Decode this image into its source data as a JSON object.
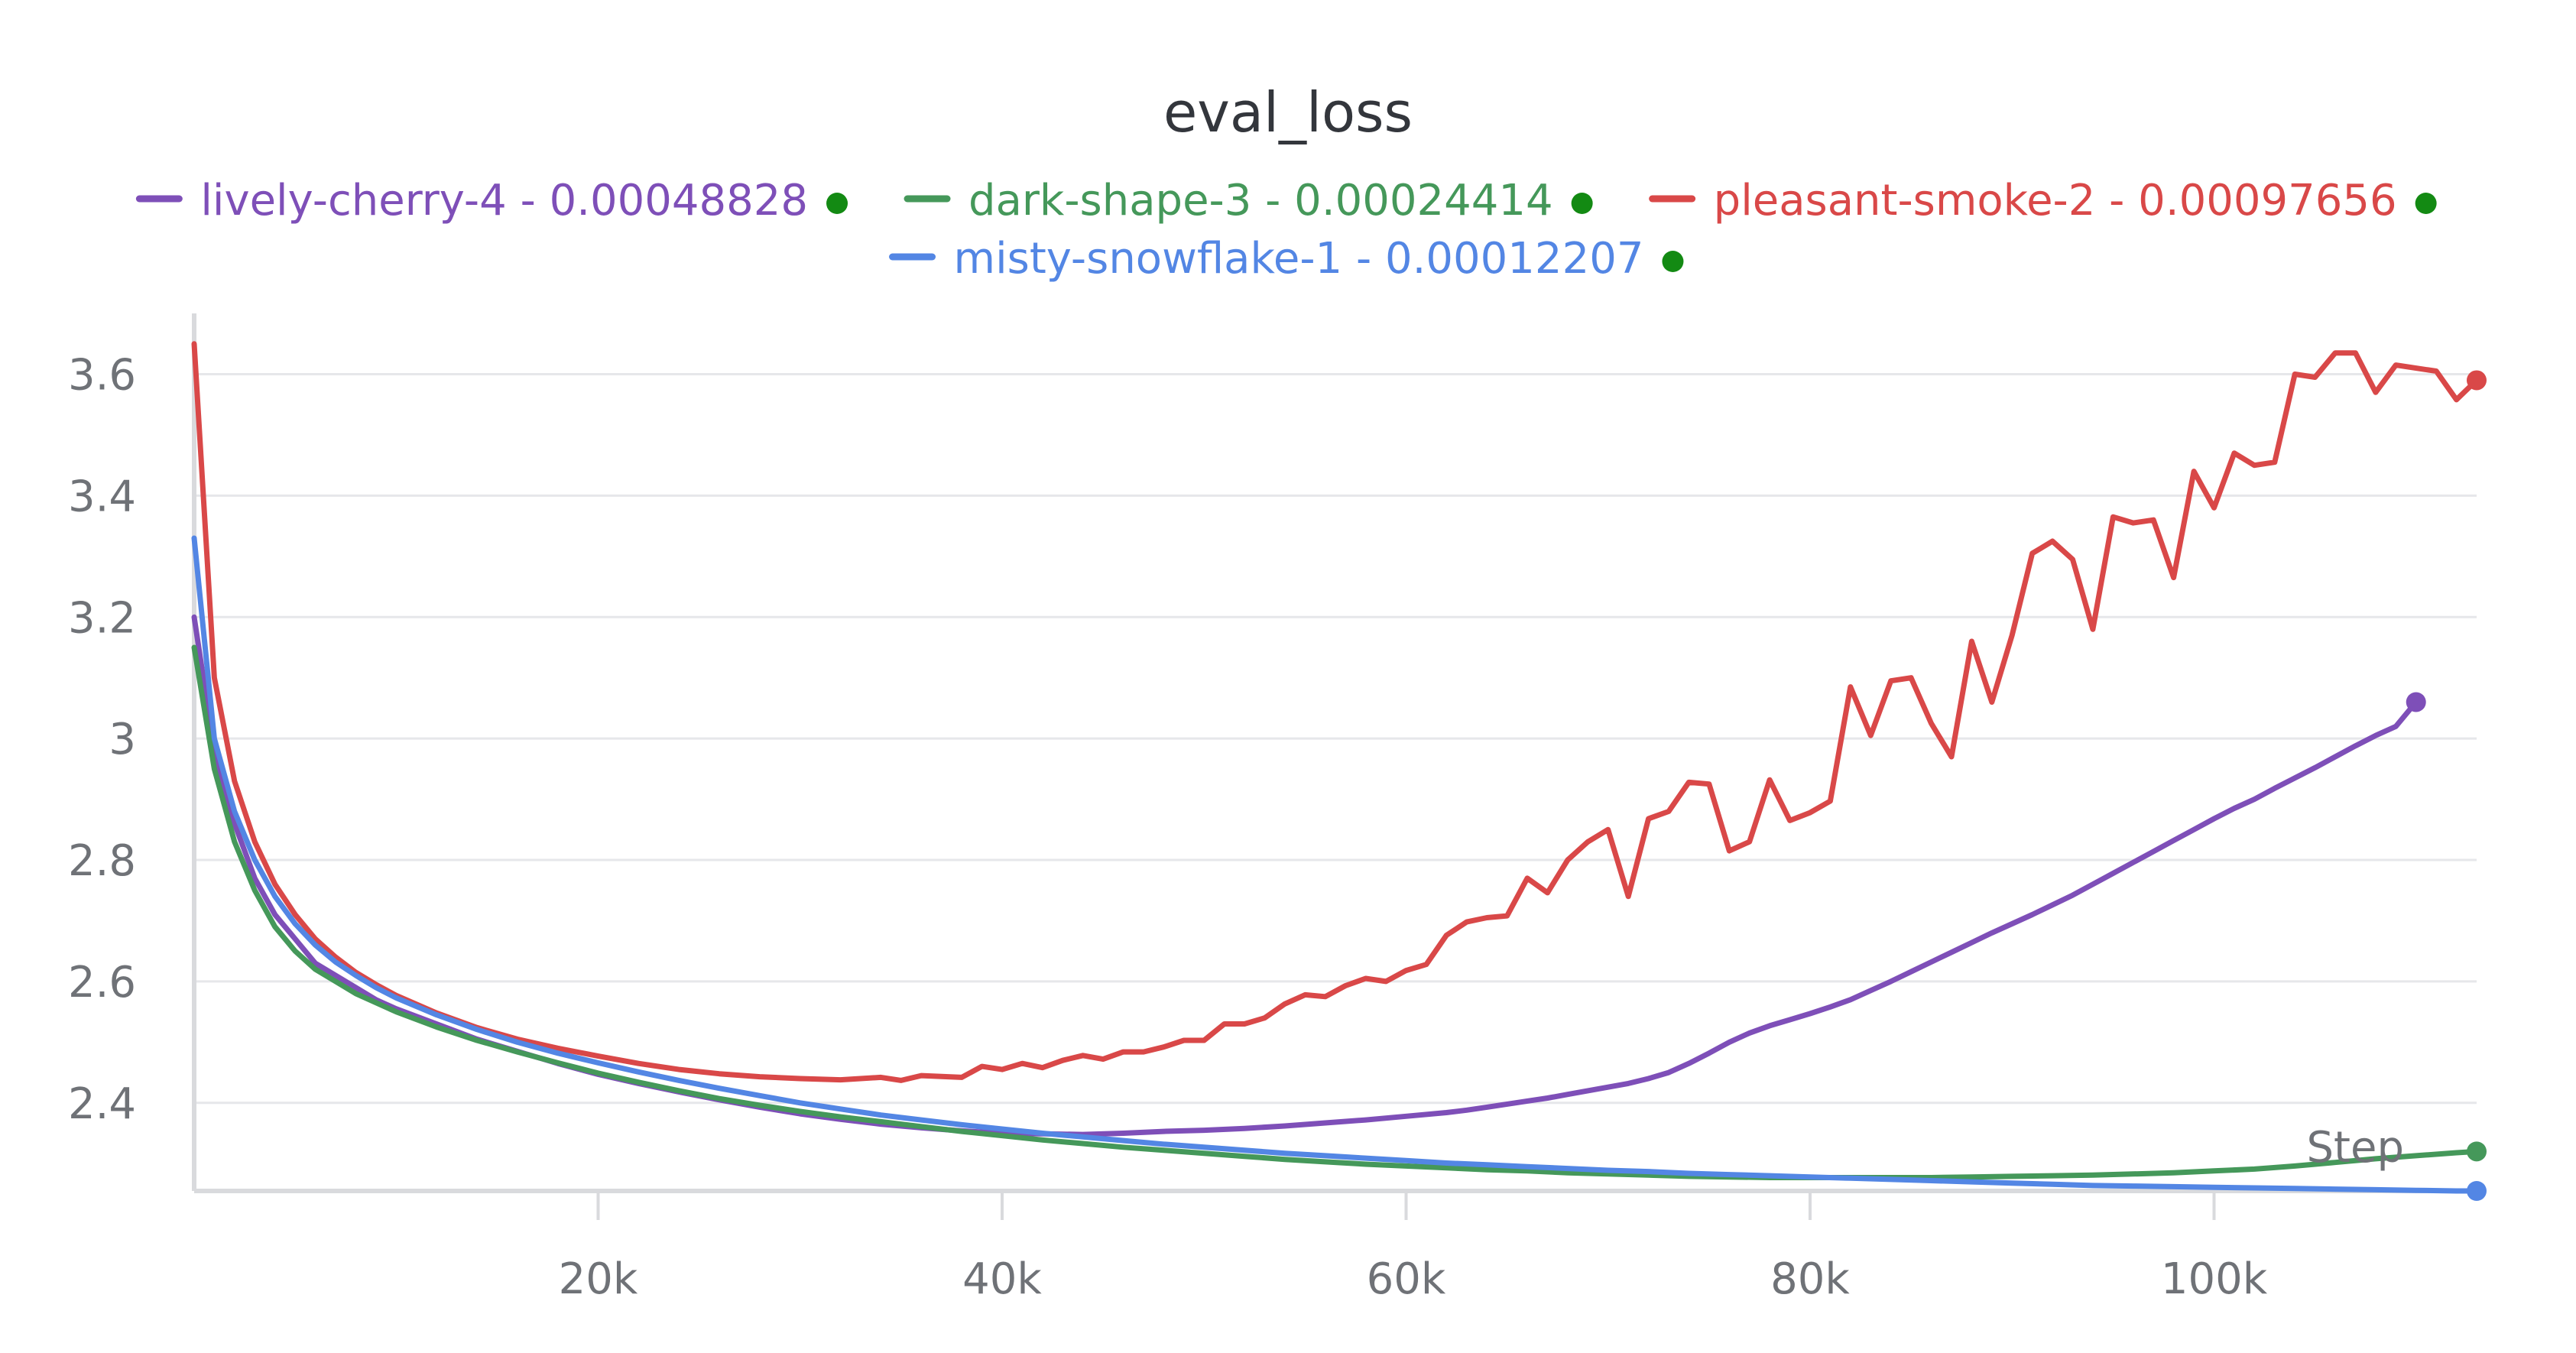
{
  "chart_data": {
    "type": "line",
    "title": "eval_loss",
    "xlabel": "Step",
    "ylabel": "",
    "xlim": [
      0,
      113000
    ],
    "ylim": [
      2.255,
      3.69
    ],
    "x_ticks": [
      {
        "value": 20000,
        "label": "20k"
      },
      {
        "value": 40000,
        "label": "40k"
      },
      {
        "value": 60000,
        "label": "60k"
      },
      {
        "value": 80000,
        "label": "80k"
      },
      {
        "value": 100000,
        "label": "100k"
      }
    ],
    "y_ticks": [
      {
        "value": 2.4,
        "label": "2.4"
      },
      {
        "value": 2.6,
        "label": "2.6"
      },
      {
        "value": 2.8,
        "label": "2.8"
      },
      {
        "value": 3.0,
        "label": "3"
      },
      {
        "value": 3.2,
        "label": "3.2"
      },
      {
        "value": 3.4,
        "label": "3.4"
      },
      {
        "value": 3.6,
        "label": "3.6"
      }
    ],
    "grid": true,
    "legend_position": "top-center",
    "series": [
      {
        "name": "lively-cherry-4 - 0.00048828",
        "color": "#7e4fb8",
        "status_color": "#138a13",
        "end_marker": true,
        "x": [
          0,
          1000,
          2000,
          3000,
          4000,
          5000,
          6000,
          7000,
          8000,
          9000,
          10000,
          12000,
          14000,
          16000,
          18000,
          20000,
          22000,
          24000,
          26000,
          28000,
          30000,
          32000,
          34000,
          36000,
          38000,
          40000,
          42000,
          44000,
          46000,
          48000,
          50000,
          52000,
          54000,
          56000,
          58000,
          60000,
          62000,
          63000,
          64000,
          65000,
          66000,
          67000,
          68000,
          69000,
          70000,
          71000,
          72000,
          73000,
          74000,
          75000,
          76000,
          77000,
          78000,
          79000,
          80000,
          81000,
          82000,
          83000,
          84000,
          85000,
          86000,
          87000,
          88000,
          89000,
          90000,
          91000,
          92000,
          93000,
          94000,
          95000,
          96000,
          97000,
          98000,
          99000,
          100000,
          101000,
          102000,
          103000,
          104000,
          105000,
          106000,
          107000,
          108000,
          109000,
          110000
        ],
        "y": [
          3.2,
          2.98,
          2.86,
          2.77,
          2.71,
          2.67,
          2.63,
          2.61,
          2.59,
          2.57,
          2.555,
          2.53,
          2.505,
          2.485,
          2.465,
          2.447,
          2.432,
          2.418,
          2.405,
          2.393,
          2.382,
          2.373,
          2.365,
          2.359,
          2.354,
          2.35,
          2.349,
          2.348,
          2.35,
          2.353,
          2.355,
          2.358,
          2.362,
          2.367,
          2.372,
          2.378,
          2.384,
          2.388,
          2.393,
          2.398,
          2.403,
          2.408,
          2.414,
          2.42,
          2.426,
          2.432,
          2.44,
          2.45,
          2.465,
          2.482,
          2.5,
          2.515,
          2.527,
          2.537,
          2.547,
          2.558,
          2.57,
          2.585,
          2.6,
          2.616,
          2.632,
          2.648,
          2.664,
          2.68,
          2.695,
          2.71,
          2.726,
          2.742,
          2.76,
          2.778,
          2.796,
          2.814,
          2.832,
          2.85,
          2.868,
          2.885,
          2.9,
          2.918,
          2.935,
          2.952,
          2.97,
          2.988,
          3.005,
          3.02,
          3.06
        ]
      },
      {
        "name": "dark-shape-3 - 0.00024414",
        "color": "#45985a",
        "status_color": "#138a13",
        "end_marker": true,
        "x": [
          0,
          1000,
          2000,
          3000,
          4000,
          5000,
          6000,
          7000,
          8000,
          9000,
          10000,
          12000,
          14000,
          16000,
          18000,
          20000,
          22000,
          24000,
          26000,
          28000,
          30000,
          32000,
          34000,
          36000,
          38000,
          40000,
          42000,
          44000,
          46000,
          48000,
          50000,
          52000,
          54000,
          56000,
          58000,
          60000,
          62000,
          64000,
          66000,
          68000,
          70000,
          72000,
          74000,
          76000,
          78000,
          80000,
          82000,
          84000,
          86000,
          88000,
          90000,
          92000,
          94000,
          96000,
          98000,
          100000,
          102000,
          104000,
          106000,
          108000,
          110000,
          112000,
          113000
        ],
        "y": [
          3.15,
          2.95,
          2.83,
          2.75,
          2.69,
          2.65,
          2.62,
          2.6,
          2.58,
          2.565,
          2.55,
          2.525,
          2.503,
          2.484,
          2.466,
          2.449,
          2.434,
          2.42,
          2.407,
          2.396,
          2.386,
          2.377,
          2.369,
          2.361,
          2.353,
          2.346,
          2.339,
          2.333,
          2.327,
          2.322,
          2.317,
          2.312,
          2.307,
          2.303,
          2.299,
          2.296,
          2.293,
          2.29,
          2.288,
          2.285,
          2.283,
          2.281,
          2.279,
          2.278,
          2.277,
          2.277,
          2.277,
          2.277,
          2.277,
          2.278,
          2.279,
          2.28,
          2.281,
          2.283,
          2.285,
          2.288,
          2.291,
          2.296,
          2.302,
          2.308,
          2.313,
          2.318,
          2.32
        ]
      },
      {
        "name": "pleasant-smoke-2 - 0.00097656",
        "color": "#d94848",
        "status_color": "#138a13",
        "end_marker": true,
        "x": [
          0,
          1000,
          2000,
          3000,
          4000,
          5000,
          6000,
          7000,
          8000,
          9000,
          10000,
          12000,
          14000,
          16000,
          18000,
          20000,
          22000,
          24000,
          26000,
          28000,
          30000,
          32000,
          34000,
          35000,
          36000,
          38000,
          39000,
          40000,
          41000,
          42000,
          43000,
          44000,
          45000,
          46000,
          47000,
          48000,
          49000,
          50000,
          51000,
          52000,
          53000,
          54000,
          55000,
          56000,
          57000,
          58000,
          59000,
          60000,
          61000,
          62000,
          63000,
          64000,
          65000,
          66000,
          67000,
          68000,
          69000,
          70000,
          71000,
          72000,
          73000,
          74000,
          75000,
          76000,
          77000,
          78000,
          79000,
          80000,
          81000,
          82000,
          83000,
          84000,
          85000,
          86000,
          87000,
          88000,
          89000,
          90000,
          91000,
          92000,
          93000,
          94000,
          95000,
          96000,
          97000,
          98000,
          99000,
          100000,
          101000,
          102000,
          103000,
          104000,
          105000,
          106000,
          107000,
          108000,
          109000,
          110000,
          111000,
          112000,
          113000
        ],
        "y": [
          3.65,
          3.1,
          2.93,
          2.83,
          2.76,
          2.71,
          2.67,
          2.64,
          2.615,
          2.595,
          2.577,
          2.548,
          2.524,
          2.505,
          2.49,
          2.477,
          2.465,
          2.455,
          2.448,
          2.443,
          2.44,
          2.438,
          2.442,
          2.437,
          2.445,
          2.442,
          2.46,
          2.455,
          2.465,
          2.458,
          2.47,
          2.478,
          2.472,
          2.484,
          2.484,
          2.492,
          2.503,
          2.503,
          2.53,
          2.53,
          2.54,
          2.563,
          2.578,
          2.575,
          2.593,
          2.605,
          2.6,
          2.618,
          2.628,
          2.676,
          2.698,
          2.705,
          2.708,
          2.77,
          2.746,
          2.8,
          2.83,
          2.85,
          2.74,
          2.868,
          2.88,
          2.928,
          2.925,
          2.815,
          2.83,
          2.932,
          2.865,
          2.878,
          2.897,
          3.085,
          3.005,
          3.095,
          3.1,
          3.025,
          2.97,
          3.16,
          3.06,
          3.17,
          3.305,
          3.325,
          3.295,
          3.18,
          3.365,
          3.355,
          3.36,
          3.265,
          3.44,
          3.38,
          3.47,
          3.45,
          3.455,
          3.6,
          3.595,
          3.635,
          3.635,
          3.57,
          3.615,
          3.61,
          3.605,
          3.558,
          3.59
        ]
      },
      {
        "name": "misty-snowflake-1 - 0.00012207",
        "color": "#5386e4",
        "status_color": "#138a13",
        "end_marker": true,
        "x": [
          0,
          1000,
          2000,
          3000,
          4000,
          5000,
          6000,
          7000,
          8000,
          9000,
          10000,
          12000,
          14000,
          16000,
          18000,
          20000,
          22000,
          24000,
          26000,
          28000,
          30000,
          32000,
          34000,
          36000,
          38000,
          40000,
          42000,
          44000,
          46000,
          48000,
          50000,
          52000,
          54000,
          56000,
          58000,
          60000,
          62000,
          64000,
          66000,
          68000,
          70000,
          72000,
          74000,
          76000,
          78000,
          80000,
          82000,
          84000,
          86000,
          88000,
          90000,
          92000,
          94000,
          96000,
          98000,
          100000,
          102000,
          104000,
          106000,
          108000,
          110000,
          112000,
          113000
        ],
        "y": [
          3.33,
          3.0,
          2.88,
          2.8,
          2.74,
          2.695,
          2.66,
          2.632,
          2.61,
          2.59,
          2.573,
          2.545,
          2.521,
          2.5,
          2.482,
          2.466,
          2.451,
          2.437,
          2.424,
          2.412,
          2.4,
          2.39,
          2.38,
          2.372,
          2.364,
          2.357,
          2.35,
          2.344,
          2.338,
          2.332,
          2.327,
          2.322,
          2.317,
          2.313,
          2.309,
          2.305,
          2.301,
          2.298,
          2.295,
          2.292,
          2.289,
          2.287,
          2.284,
          2.282,
          2.28,
          2.278,
          2.276,
          2.274,
          2.272,
          2.27,
          2.268,
          2.266,
          2.264,
          2.263,
          2.262,
          2.261,
          2.26,
          2.259,
          2.258,
          2.257,
          2.256,
          2.255,
          2.255
        ]
      }
    ]
  }
}
